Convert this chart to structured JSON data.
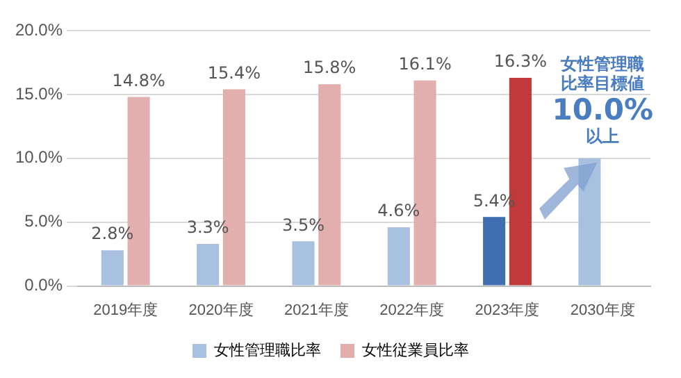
{
  "chart_data": {
    "type": "bar",
    "categories": [
      "2019年度",
      "2020年度",
      "2021年度",
      "2022年度",
      "2023年度",
      "2030年度"
    ],
    "series": [
      {
        "name": "女性管理職比率",
        "color": "#a9c1e1",
        "colors": [
          "#a9c1e1",
          "#a9c1e1",
          "#a9c1e1",
          "#a9c1e1",
          "#3f6fb0",
          "#a9c1e1"
        ],
        "values": [
          2.8,
          3.3,
          3.5,
          4.6,
          5.4,
          10.0
        ],
        "value_labels": [
          "2.8%",
          "3.3%",
          "3.5%",
          "4.6%",
          "5.4%",
          null
        ]
      },
      {
        "name": "女性従業員比率",
        "color": "#e3aeae",
        "colors": [
          "#e3aeae",
          "#e3aeae",
          "#e3aeae",
          "#e3aeae",
          "#c0393b",
          null
        ],
        "values": [
          14.8,
          15.4,
          15.8,
          16.1,
          16.3,
          null
        ],
        "value_labels": [
          "14.8%",
          "15.4%",
          "15.8%",
          "16.1%",
          "16.3%",
          null
        ]
      }
    ],
    "ylim": [
      0,
      20
    ],
    "yticks": [
      {
        "value": 0,
        "label": "0.0%"
      },
      {
        "value": 5,
        "label": "5.0%"
      },
      {
        "value": 10,
        "label": "10.0%"
      },
      {
        "value": 15,
        "label": "15.0%"
      },
      {
        "value": 20,
        "label": "20.0%"
      }
    ],
    "grid": "y",
    "legend": "bottom",
    "annotations": [
      "女性管理職比率目標値",
      {
        "text": "10.0%",
        "x": "2030年度",
        "y": 10
      },
      {
        "text": "以上",
        "x": "2030年度",
        "y": 10
      }
    ]
  }
}
